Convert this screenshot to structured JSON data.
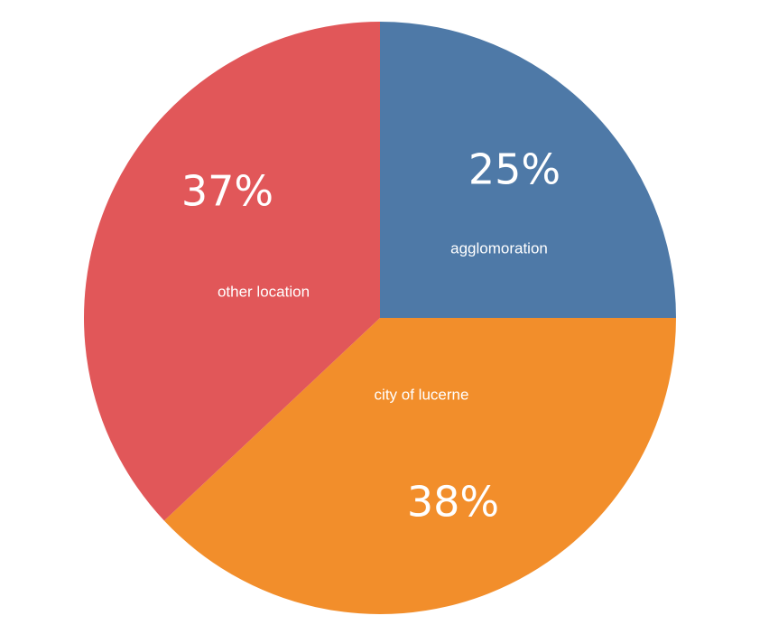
{
  "chart_data": {
    "type": "pie",
    "slices": [
      {
        "label": "agglomoration",
        "value": 25,
        "value_label": "25%",
        "color": "#4e79a7"
      },
      {
        "label": "city of lucerne",
        "value": 38,
        "value_label": "38%",
        "color": "#f28e2b"
      },
      {
        "label": "other location",
        "value": 37,
        "value_label": "37%",
        "color": "#e15759"
      }
    ],
    "start_angle": "12 o'clock",
    "direction": "clockwise",
    "legend": "none"
  }
}
